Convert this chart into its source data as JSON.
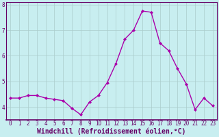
{
  "x": [
    0,
    1,
    2,
    3,
    4,
    5,
    6,
    7,
    8,
    9,
    10,
    11,
    12,
    13,
    14,
    15,
    16,
    17,
    18,
    19,
    20,
    21,
    22,
    23
  ],
  "y": [
    4.35,
    4.35,
    4.45,
    4.45,
    4.35,
    4.3,
    4.25,
    3.95,
    3.7,
    4.2,
    4.45,
    4.95,
    5.7,
    6.65,
    7.0,
    7.75,
    7.7,
    6.5,
    6.2,
    5.5,
    4.9,
    3.9,
    4.35,
    4.05
  ],
  "line_color": "#aa00aa",
  "marker": "D",
  "marker_size": 2.0,
  "bg_color": "#c8eef0",
  "grid_color": "#aacccc",
  "spine_color": "#660066",
  "text_color": "#660066",
  "xlabel": "Windchill (Refroidissement éolien,°C)",
  "xlim": [
    -0.5,
    23.5
  ],
  "ylim": [
    3.5,
    8.1
  ],
  "yticks": [
    4,
    5,
    6,
    7,
    8
  ],
  "xticks": [
    0,
    1,
    2,
    3,
    4,
    5,
    6,
    7,
    8,
    9,
    10,
    11,
    12,
    13,
    14,
    15,
    16,
    17,
    18,
    19,
    20,
    21,
    22,
    23
  ],
  "tick_fontsize": 5.5,
  "xlabel_fontsize": 7.0,
  "line_width": 1.0
}
